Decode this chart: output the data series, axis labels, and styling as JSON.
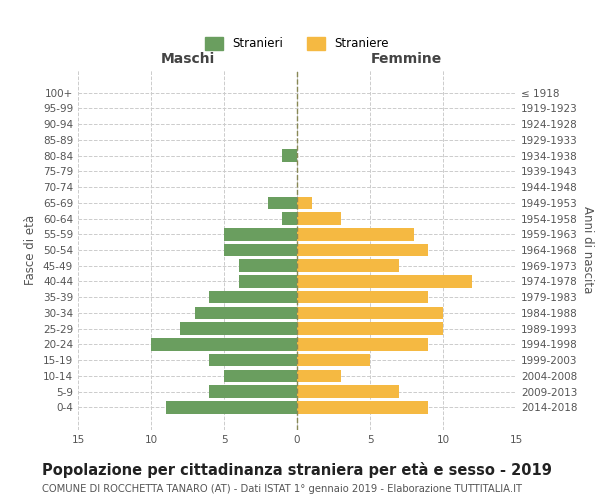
{
  "age_groups": [
    "100+",
    "95-99",
    "90-94",
    "85-89",
    "80-84",
    "75-79",
    "70-74",
    "65-69",
    "60-64",
    "55-59",
    "50-54",
    "45-49",
    "40-44",
    "35-39",
    "30-34",
    "25-29",
    "20-24",
    "15-19",
    "10-14",
    "5-9",
    "0-4"
  ],
  "birth_years": [
    "≤ 1918",
    "1919-1923",
    "1924-1928",
    "1929-1933",
    "1934-1938",
    "1939-1943",
    "1944-1948",
    "1949-1953",
    "1954-1958",
    "1959-1963",
    "1964-1968",
    "1969-1973",
    "1974-1978",
    "1979-1983",
    "1984-1988",
    "1989-1993",
    "1994-1998",
    "1999-2003",
    "2004-2008",
    "2009-2013",
    "2014-2018"
  ],
  "males": [
    0,
    0,
    0,
    0,
    1,
    0,
    0,
    2,
    1,
    5,
    5,
    4,
    4,
    6,
    7,
    8,
    10,
    6,
    5,
    6,
    9
  ],
  "females": [
    0,
    0,
    0,
    0,
    0,
    0,
    0,
    1,
    3,
    8,
    9,
    7,
    12,
    9,
    10,
    10,
    9,
    5,
    3,
    7,
    9
  ],
  "male_color": "#6a9e5f",
  "female_color": "#f5b942",
  "male_label": "Stranieri",
  "female_label": "Straniere",
  "xlim": 15,
  "title": "Popolazione per cittadinanza straniera per età e sesso - 2019",
  "subtitle": "COMUNE DI ROCCHETTA TANARO (AT) - Dati ISTAT 1° gennaio 2019 - Elaborazione TUTTITALIA.IT",
  "ylabel_left": "Fasce di età",
  "ylabel_right": "Anni di nascita",
  "xlabel_left": "Maschi",
  "xlabel_right": "Femmine",
  "bg_color": "#ffffff",
  "grid_color": "#cccccc",
  "bar_height": 0.8,
  "title_fontsize": 10.5,
  "subtitle_fontsize": 7.2,
  "tick_fontsize": 7.5,
  "label_fontsize": 10,
  "axis_label_fontsize": 8.5
}
